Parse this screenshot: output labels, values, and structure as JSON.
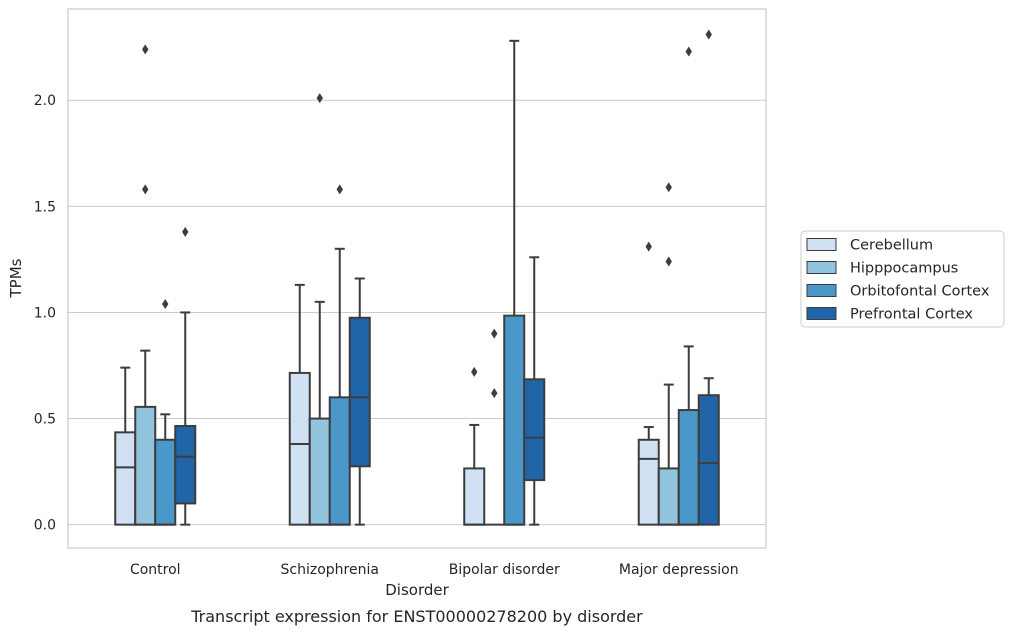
{
  "chart_data": {
    "type": "box",
    "title": "Transcript expression for ENST00000278200 by disorder",
    "xlabel": "Disorder",
    "ylabel": "TPMs",
    "ylim": [
      -0.11,
      2.43
    ],
    "yticks": [
      "0.0",
      "0.5",
      "1.0",
      "1.5",
      "2.0"
    ],
    "grid": true,
    "legend_position": "right",
    "categories": [
      "Control",
      "Schizophrenia",
      "Bipolar disorder",
      "Major depression"
    ],
    "series": [
      {
        "name": "Cerebellum",
        "color": "#cfe1f2",
        "boxes": [
          {
            "whisker_low": 0,
            "q1": 0,
            "median": 0.27,
            "q3": 0.435,
            "whisker_high": 0.74,
            "outliers": []
          },
          {
            "whisker_low": 0,
            "q1": 0,
            "median": 0.38,
            "q3": 0.715,
            "whisker_high": 1.13,
            "outliers": []
          },
          {
            "whisker_low": 0,
            "q1": 0,
            "median": 0,
            "q3": 0.265,
            "whisker_high": 0.47,
            "outliers": [
              0.72
            ]
          },
          {
            "whisker_low": 0,
            "q1": 0,
            "median": 0.31,
            "q3": 0.4,
            "whisker_high": 0.46,
            "outliers": [
              1.31
            ]
          }
        ]
      },
      {
        "name": "Hipppocampus",
        "color": "#93c4de",
        "boxes": [
          {
            "whisker_low": 0,
            "q1": 0,
            "median": 0,
            "q3": 0.555,
            "whisker_high": 0.82,
            "outliers": [
              1.58,
              2.24
            ]
          },
          {
            "whisker_low": 0,
            "q1": 0,
            "median": 0,
            "q3": 0.5,
            "whisker_high": 1.05,
            "outliers": [
              2.01
            ]
          },
          {
            "whisker_low": 0,
            "q1": 0,
            "median": 0,
            "q3": 0,
            "whisker_high": 0,
            "outliers": [
              0.62,
              0.9
            ]
          },
          {
            "whisker_low": 0,
            "q1": 0,
            "median": 0,
            "q3": 0.265,
            "whisker_high": 0.66,
            "outliers": [
              1.24,
              1.59
            ]
          }
        ]
      },
      {
        "name": "Orbitofontal Cortex",
        "color": "#4a98c9",
        "boxes": [
          {
            "whisker_low": 0,
            "q1": 0,
            "median": 0,
            "q3": 0.4,
            "whisker_high": 0.52,
            "outliers": [
              1.04
            ]
          },
          {
            "whisker_low": 0,
            "q1": 0,
            "median": 0,
            "q3": 0.6,
            "whisker_high": 1.3,
            "outliers": [
              1.58
            ]
          },
          {
            "whisker_low": 0,
            "q1": 0,
            "median": 0,
            "q3": 0.985,
            "whisker_high": 2.28,
            "outliers": []
          },
          {
            "whisker_low": 0,
            "q1": 0,
            "median": 0,
            "q3": 0.54,
            "whisker_high": 0.84,
            "outliers": [
              2.23
            ]
          }
        ]
      },
      {
        "name": "Prefrontal Cortex",
        "color": "#2165a9",
        "boxes": [
          {
            "whisker_low": 0,
            "q1": 0.1,
            "median": 0.32,
            "q3": 0.465,
            "whisker_high": 1.0,
            "outliers": [
              1.38
            ]
          },
          {
            "whisker_low": 0,
            "q1": 0.275,
            "median": 0.6,
            "q3": 0.975,
            "whisker_high": 1.16,
            "outliers": []
          },
          {
            "whisker_low": 0,
            "q1": 0.21,
            "median": 0.41,
            "q3": 0.685,
            "whisker_high": 1.26,
            "outliers": []
          },
          {
            "whisker_low": 0,
            "q1": 0,
            "median": 0.29,
            "q3": 0.61,
            "whisker_high": 0.69,
            "outliers": [
              2.31
            ]
          }
        ]
      }
    ]
  }
}
